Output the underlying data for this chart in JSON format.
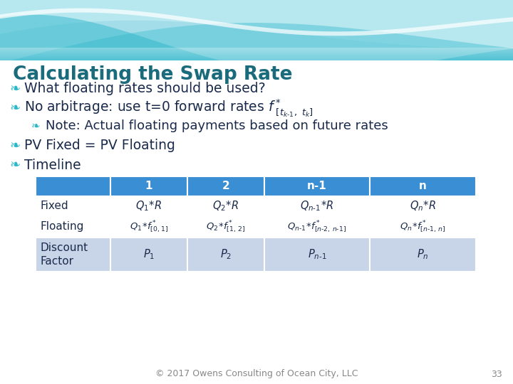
{
  "title": "Calculating the Swap Rate",
  "title_color": "#1a6b7c",
  "bg_color": "#ffffff",
  "bullet_color": "#2ab8c8",
  "text_color": "#1a2a4a",
  "table_header_bg": "#3a8fd4",
  "table_header_text": "#ffffff",
  "table_row_white": "#ffffff",
  "table_row_blue": "#c8d4e8",
  "table_border_color": "#ffffff",
  "footer_text": "© 2017 Owens Consulting of Ocean City, LLC",
  "footer_page": "33",
  "wave_bg": "#b8e8ef",
  "wave1": "#a0dce8",
  "wave2": "#5cc8d8",
  "wave3": "#30b8cc",
  "wave_white": "#ffffff"
}
